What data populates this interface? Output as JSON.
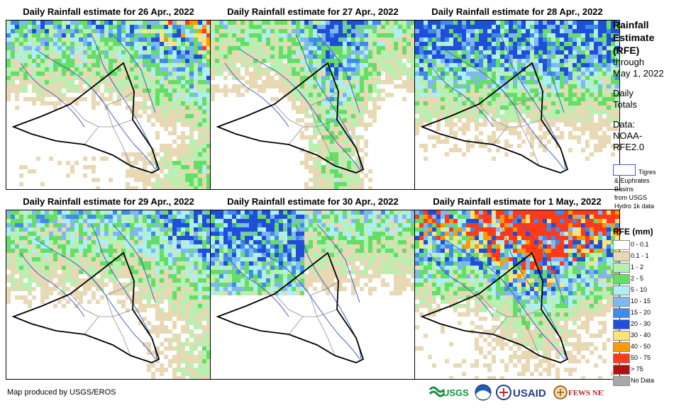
{
  "panels": [
    {
      "title": "Daily Rainfall estimate for 26 Apr., 2022"
    },
    {
      "title": "Daily Rainfall estimate for 27 Apr., 2022"
    },
    {
      "title": "Daily Rainfall estimate for 28 Apr., 2022"
    },
    {
      "title": "Daily Rainfall estimate for 29 Apr., 2022"
    },
    {
      "title": "Daily Rainfall estimate for 30 Apr., 2022"
    },
    {
      "title": "Daily Rainfall estimate for 1 May., 2022"
    }
  ],
  "side": {
    "title_lines": [
      "Rainfall",
      "Estimate",
      "(RFE)"
    ],
    "through": "through",
    "date": "May 1, 2022",
    "daily": "Daily",
    "totals": "Totals",
    "data_label": "Data:",
    "data_source_1": "NOAA-",
    "data_source_2": "RFE2.0"
  },
  "basin_key": {
    "line1": "Tigres",
    "line2": "& Euphrates",
    "line3": "Basins",
    "line4": "from USGS",
    "line5": "Hydro 1k data"
  },
  "legend": {
    "title": "RFE (mm)",
    "items": [
      {
        "label": "0 - 0.1",
        "color": "#ffffff"
      },
      {
        "label": "0.1 - 1",
        "color": "#e8d8b4"
      },
      {
        "label": "1 - 2",
        "color": "#b7f0b1"
      },
      {
        "label": "2 - 5",
        "color": "#66dd66"
      },
      {
        "label": "5 - 10",
        "color": "#aeeef5"
      },
      {
        "label": "10 - 15",
        "color": "#7fb8f0"
      },
      {
        "label": "15 - 20",
        "color": "#3c8ce8"
      },
      {
        "label": "20 - 30",
        "color": "#1f4fd8"
      },
      {
        "label": "30 - 40",
        "color": "#ffe27a"
      },
      {
        "label": "40 - 50",
        "color": "#ff9a00"
      },
      {
        "label": "50 - 75",
        "color": "#ff3a1a"
      },
      {
        "label": "> 75",
        "color": "#b01010"
      },
      {
        "label": "No Data",
        "color": "#a8a8a8"
      }
    ]
  },
  "credit": "Map produced by USGS/EROS",
  "logos": {
    "usgs": "USGS",
    "usaid": "USAID",
    "fewsnet": "FEWS NET"
  }
}
